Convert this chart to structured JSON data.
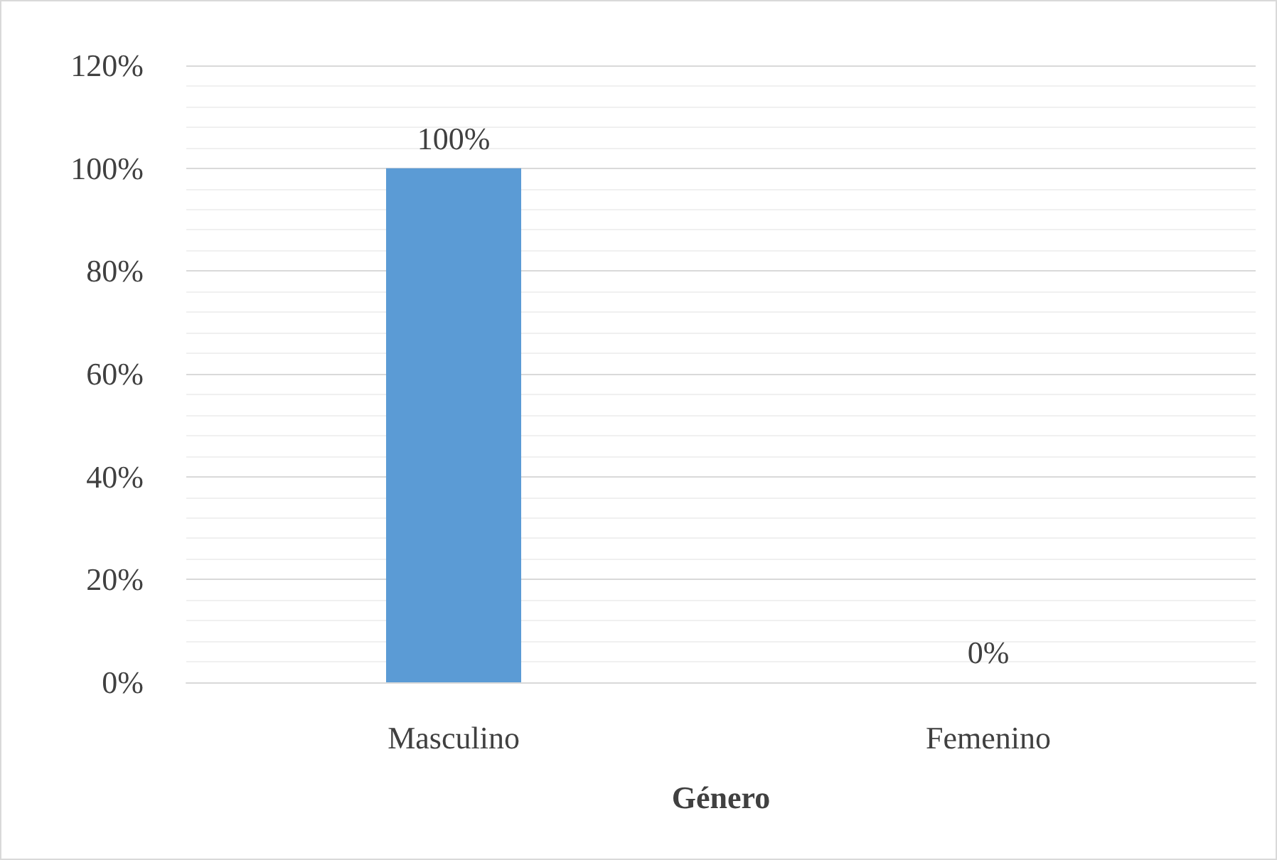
{
  "chart_data": {
    "type": "bar",
    "xlabel": "Género",
    "categories": [
      "Masculino",
      "Femenino"
    ],
    "values": [
      100,
      0
    ],
    "color": "#5b9bd5",
    "value_labels": [
      "100%",
      "0%"
    ],
    "ylim": [
      0,
      120
    ],
    "yticks": [
      {
        "value": 0,
        "label": "0%"
      },
      {
        "value": 20,
        "label": "20%"
      },
      {
        "value": 40,
        "label": "40%"
      },
      {
        "value": 60,
        "label": "60%"
      },
      {
        "value": 80,
        "label": "80%"
      },
      {
        "value": 100,
        "label": "100%"
      },
      {
        "value": 120,
        "label": "120%"
      }
    ],
    "grid": "y"
  }
}
